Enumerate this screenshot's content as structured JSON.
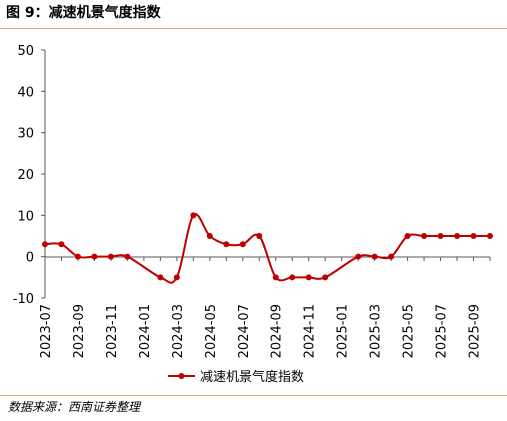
{
  "figure": {
    "title": "图 9：减速机景气度指数",
    "source": "数据来源：西南证券整理"
  },
  "colors": {
    "series": "#C00000",
    "rule": "#C9A96E",
    "axis": "#595959",
    "text": "#000000"
  },
  "chart_data": {
    "type": "line",
    "title": "",
    "xlabel": "",
    "ylabel": "",
    "x": [
      "2023-07",
      "2023-08",
      "2023-09",
      "2023-10",
      "2023-11",
      "2023-12",
      "2024-01",
      "2024-02",
      "2024-03",
      "2024-04",
      "2024-05",
      "2024-06",
      "2024-07",
      "2024-08",
      "2024-09",
      "2024-10",
      "2024-11",
      "2024-12",
      "2025-01",
      "2025-02",
      "2025-03",
      "2025-04",
      "2025-05",
      "2025-06",
      "2025-07",
      "2025-08",
      "2025-09",
      "2025-10"
    ],
    "x_tick_labels": [
      "2023-07",
      "2023-09",
      "2023-11",
      "2024-01",
      "2024-03",
      "2024-05",
      "2024-07",
      "2024-09",
      "2024-11",
      "2025-01",
      "2025-03",
      "2025-05",
      "2025-07",
      "2025-09"
    ],
    "y_ticks": [
      50,
      40,
      30,
      20,
      10,
      0,
      -10
    ],
    "ylim": [
      -10,
      50
    ],
    "grid": false,
    "legend_position": "bottom",
    "series": [
      {
        "name": "减速机景气度指数",
        "values": [
          3,
          3,
          0,
          0,
          0,
          0,
          null,
          -5,
          -5,
          10,
          5,
          3,
          3,
          5,
          -5,
          -5,
          -5,
          -5,
          null,
          0,
          0,
          0,
          5,
          5,
          5,
          5,
          5,
          5
        ]
      }
    ]
  }
}
